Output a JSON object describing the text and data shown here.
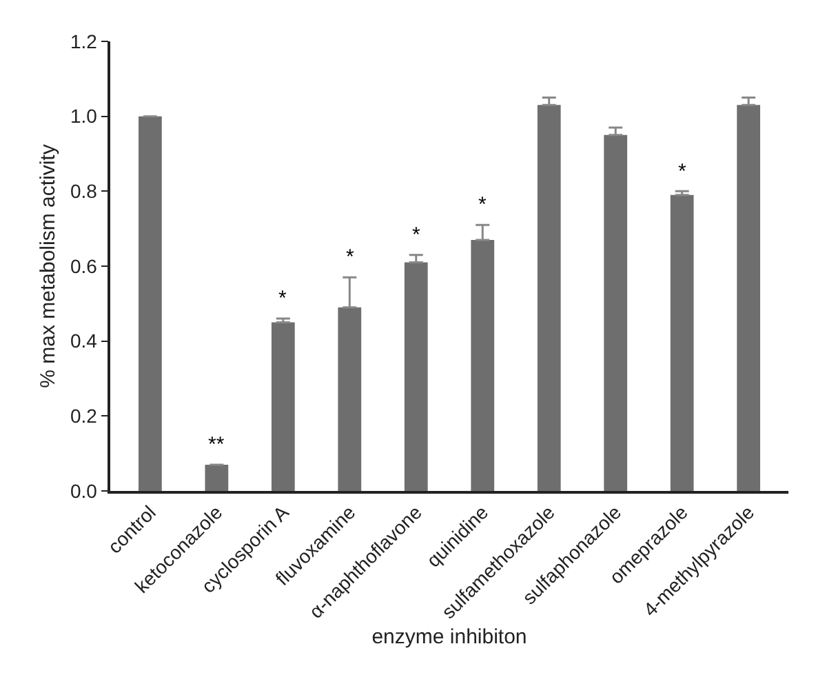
{
  "chart_data": {
    "type": "bar",
    "xlabel": "enzyme inhibiton",
    "ylabel": "% max metabolism activity",
    "categories": [
      "control",
      "ketoconazole",
      "cyclosporin A",
      "fluvoxamine",
      "α-naphthoflavone",
      "quinidine",
      "sulfamethoxazole",
      "sulfaphonazole",
      "omeprazole",
      "4-methylpyrazole"
    ],
    "values": [
      1.0,
      0.07,
      0.45,
      0.49,
      0.61,
      0.67,
      1.03,
      0.95,
      0.79,
      1.03
    ],
    "errors": [
      null,
      null,
      [
        0.45,
        0.46
      ],
      [
        0.49,
        0.57
      ],
      [
        0.61,
        0.63
      ],
      [
        0.67,
        0.71
      ],
      [
        1.03,
        1.05
      ],
      [
        0.95,
        0.97
      ],
      [
        0.79,
        0.8
      ],
      [
        1.03,
        1.05
      ]
    ],
    "color": "#6e6e6e",
    "ylim": [
      0,
      1.2
    ],
    "yticks": [
      {
        "value": 0,
        "label": "0.0"
      },
      0.2,
      0.4,
      0.6,
      0.8,
      {
        "value": 1,
        "label": "1.0"
      },
      1.2
    ],
    "grid": false,
    "annotations": [
      {
        "text": "**",
        "x": "ketoconazole",
        "y": 0.07
      },
      {
        "text": "*",
        "x": "cyclosporin A",
        "y": 0.46
      },
      {
        "text": "*",
        "x": "fluvoxamine",
        "y": 0.57
      },
      {
        "text": "*",
        "x": "α-naphthoflavone",
        "y": 0.63
      },
      {
        "text": "*",
        "x": "quinidine",
        "y": 0.71
      },
      {
        "text": "*",
        "x": "omeprazole",
        "y": 0.8
      }
    ]
  }
}
